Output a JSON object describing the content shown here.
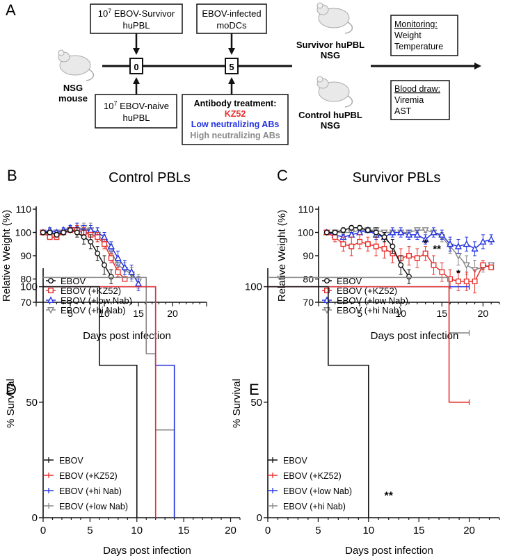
{
  "schematic": {
    "panel_label": "A",
    "box_survivor": [
      "10",
      "7",
      " EBOV-Survivor",
      "huPBL"
    ],
    "box_naive": [
      "10",
      "7",
      " EBOV-naive",
      "huPBL"
    ],
    "box_modc": [
      "EBOV-infected",
      "moDCs"
    ],
    "day0": "0",
    "day5": "5",
    "mouse_label": [
      "NSG",
      "mouse"
    ],
    "antibody": {
      "title": "Antibody treatment:",
      "kz52": "KZ52",
      "low": "Low neutralizing ABs",
      "high": "High neutralizing ABs"
    },
    "group_survivor": [
      "Survivor huPBL",
      "NSG"
    ],
    "group_control": [
      "Control huPBL",
      "NSG"
    ],
    "monitoring": [
      "Monitoring:",
      "Weight",
      "Temperature"
    ],
    "blood": [
      "Blood draw:",
      "Viremia",
      "AST"
    ]
  },
  "colors": {
    "EBOV": "#111111",
    "KZ52": "#e8302b",
    "low": "#2233e0",
    "hi": "#888888"
  },
  "chart_data": [
    {
      "id": "B",
      "type": "line",
      "panel_label": "B",
      "title": "Control PBLs",
      "xlabel": "Days post infection",
      "ylabel": "Relative Weight  (%)",
      "xlim": [
        0,
        25
      ],
      "ylim": [
        70,
        110
      ],
      "xticks": [
        "5",
        "10",
        "15",
        "20"
      ],
      "yticks": [
        "70",
        "80",
        "90",
        "100",
        "110"
      ],
      "legend": [
        "EBOV",
        "EBOV (+KZ52)",
        "EBOV (+low Nab)",
        "EBOV (+hi Nab)"
      ],
      "series": [
        {
          "name": "EBOV",
          "key": "EBOV",
          "marker": "circle",
          "x": [
            1,
            2,
            3,
            4,
            5,
            6,
            7,
            8,
            9,
            10,
            11
          ],
          "y": [
            100,
            100,
            99,
            100,
            101,
            100,
            98,
            96,
            91,
            86,
            81
          ],
          "err": [
            0,
            1,
            1,
            1,
            1,
            2,
            3,
            3,
            3,
            4,
            3
          ]
        },
        {
          "name": "EBOV (+KZ52)",
          "key": "KZ52",
          "marker": "square",
          "x": [
            1,
            2,
            3,
            4,
            5,
            6,
            7,
            8,
            9,
            10,
            11,
            12,
            13
          ],
          "y": [
            100,
            98,
            98,
            100,
            101,
            101,
            100,
            99,
            98,
            95,
            89,
            83,
            80
          ],
          "err": [
            0,
            1,
            1,
            1,
            1,
            2,
            2,
            1,
            2,
            2,
            2,
            2,
            1
          ]
        },
        {
          "name": "EBOV (+low Nab)",
          "key": "low",
          "marker": "triangle",
          "x": [
            1,
            2,
            3,
            4,
            5,
            6,
            7,
            8,
            9,
            10,
            11,
            12,
            13,
            14,
            15
          ],
          "y": [
            100,
            101,
            100,
            101,
            102,
            102,
            101,
            101,
            100,
            98,
            94,
            89,
            85,
            83,
            78
          ],
          "err": [
            0,
            1,
            1,
            1,
            1,
            2,
            2,
            2,
            2,
            2,
            2,
            3,
            3,
            3,
            3
          ]
        },
        {
          "name": "EBOV (+hi Nab)",
          "key": "hi",
          "marker": "tri-down",
          "x": [
            1,
            2,
            3,
            4,
            5,
            6,
            7,
            8,
            9,
            10,
            11,
            12,
            13,
            14,
            15
          ],
          "y": [
            100,
            99,
            100,
            100,
            101,
            101,
            102,
            101,
            99,
            96,
            92,
            86,
            84,
            82,
            79
          ],
          "err": [
            0,
            1,
            1,
            1,
            1,
            2,
            2,
            3,
            3,
            3,
            3,
            3,
            3,
            3,
            3
          ]
        }
      ]
    },
    {
      "id": "C",
      "type": "line",
      "panel_label": "C",
      "title": "Survivor PBLs",
      "xlabel": "Days post infection",
      "ylabel": "Relative Weight  (%)",
      "xlim": [
        0,
        22
      ],
      "ylim": [
        70,
        110
      ],
      "xticks": [
        "5",
        "10",
        "15",
        "20"
      ],
      "yticks": [
        "70",
        "80",
        "90",
        "100",
        "110"
      ],
      "legend": [
        "EBOV",
        "EBOV (+KZ52)",
        "EBOV (+low Nab)",
        "EBOV (+hi Nab)"
      ],
      "annotations": [
        {
          "text": "*",
          "x": 13,
          "y": 94
        },
        {
          "text": "**",
          "x": 14.4,
          "y": 91.5
        },
        {
          "text": "*",
          "x": 17,
          "y": 81
        }
      ],
      "series": [
        {
          "name": "EBOV",
          "key": "EBOV",
          "marker": "circle",
          "x": [
            1,
            2,
            3,
            4,
            5,
            6,
            7,
            8,
            9,
            10,
            11
          ],
          "y": [
            100,
            100,
            101,
            102,
            102,
            101,
            100,
            98,
            94,
            86,
            81
          ],
          "err": [
            0,
            1,
            1,
            1,
            1,
            1,
            2,
            2,
            3,
            4,
            3
          ]
        },
        {
          "name": "EBOV (+KZ52)",
          "key": "KZ52",
          "marker": "square",
          "x": [
            1,
            2,
            3,
            4,
            5,
            6,
            7,
            8,
            9,
            10,
            11,
            12,
            13,
            14,
            15,
            16,
            17,
            18,
            19,
            20,
            21
          ],
          "y": [
            100,
            98,
            95,
            94,
            96,
            95,
            94,
            93,
            91,
            89,
            90,
            89,
            91,
            86,
            83,
            80,
            79,
            79,
            79,
            86,
            85
          ],
          "err": [
            0,
            2,
            3,
            4,
            3,
            3,
            4,
            4,
            4,
            4,
            4,
            4,
            3,
            4,
            4,
            4,
            4,
            4,
            5,
            2,
            1
          ]
        },
        {
          "name": "EBOV (+low Nab)",
          "key": "low",
          "marker": "triangle",
          "x": [
            1,
            2,
            3,
            4,
            5,
            6,
            7,
            8,
            9,
            10,
            11,
            12,
            13,
            14,
            15,
            16,
            17,
            18,
            19,
            20,
            21
          ],
          "y": [
            100,
            99,
            98,
            99,
            100,
            101,
            99,
            98,
            100,
            100,
            99,
            99,
            97,
            100,
            99,
            95,
            94,
            95,
            93,
            96,
            97
          ],
          "err": [
            0,
            1,
            1,
            1,
            1,
            1,
            2,
            2,
            2,
            2,
            2,
            2,
            2,
            2,
            2,
            3,
            3,
            3,
            3,
            3,
            2
          ]
        },
        {
          "name": "EBOV (+hi Nab)",
          "key": "hi",
          "marker": "tri-down",
          "x": [
            1,
            2,
            3,
            4,
            5,
            6,
            7,
            8,
            9,
            10,
            11,
            12,
            13,
            14,
            15,
            16,
            17,
            18,
            19,
            20,
            21
          ],
          "y": [
            100,
            100,
            100,
            100,
            101,
            101,
            101,
            100,
            100,
            100,
            100,
            101,
            101,
            100,
            98,
            94,
            90,
            86,
            84,
            85,
            86
          ],
          "err": [
            0,
            1,
            1,
            1,
            1,
            1,
            1,
            1,
            1,
            1,
            1,
            1,
            1,
            1,
            2,
            3,
            4,
            4,
            4,
            2,
            1
          ]
        }
      ]
    },
    {
      "id": "D",
      "type": "line",
      "subtype": "survival",
      "panel_label": "D",
      "xlabel": "Days post infection",
      "ylabel": "% Survival",
      "xlim": [
        0,
        21
      ],
      "ylim": [
        0,
        105
      ],
      "xticks": [
        "0",
        "5",
        "10",
        "15",
        "20"
      ],
      "yticks": [
        "0",
        "50",
        "100"
      ],
      "legend": [
        "EBOV",
        "EBOV (+KZ52)",
        "EBOV (+hi Nab)",
        "EBOV (+low Nab)"
      ],
      "series": [
        {
          "name": "EBOV",
          "key": "EBOV",
          "steps": [
            [
              0,
              100
            ],
            [
              6,
              66
            ],
            [
              10,
              0
            ]
          ]
        },
        {
          "name": "EBOV (+KZ52)",
          "key": "KZ52",
          "steps": [
            [
              0,
              100
            ],
            [
              12,
              0
            ]
          ]
        },
        {
          "name": "EBOV (+hi Nab)",
          "key": "low",
          "steps": [
            [
              0,
              100
            ],
            [
              12,
              66
            ],
            [
              14,
              0
            ]
          ]
        },
        {
          "name": "EBOV (+low Nab)",
          "key": "hi",
          "steps": [
            [
              0,
              104
            ],
            [
              11,
              71
            ],
            [
              12,
              38
            ],
            [
              14,
              0
            ]
          ]
        }
      ]
    },
    {
      "id": "E",
      "type": "line",
      "subtype": "survival",
      "panel_label": "E",
      "xlabel": "Days post infection",
      "ylabel": "% Survival",
      "xlim": [
        0,
        23
      ],
      "ylim": [
        0,
        105
      ],
      "xticks": [
        "0",
        "5",
        "10",
        "15",
        "20"
      ],
      "yticks": [
        "0",
        "50",
        "100"
      ],
      "legend": [
        "EBOV",
        "EBOV (+KZ52)",
        "EBOV (+low Nab)",
        "EBOV (+hi Nab)"
      ],
      "annotations": [
        {
          "text": "**",
          "x": 12,
          "y": 8
        }
      ],
      "series": [
        {
          "name": "EBOV",
          "key": "EBOV",
          "steps": [
            [
              0,
              100
            ],
            [
              6,
              66
            ],
            [
              10,
              0
            ]
          ]
        },
        {
          "name": "EBOV (+KZ52)",
          "key": "KZ52",
          "steps": [
            [
              0,
              100
            ],
            [
              18,
              50
            ]
          ],
          "end": 20
        },
        {
          "name": "EBOV (+low Nab)",
          "key": "low",
          "steps": [
            [
              0,
              100
            ]
          ],
          "end": 20
        },
        {
          "name": "EBOV (+hi Nab)",
          "key": "hi",
          "steps": [
            [
              0,
              104
            ],
            [
              18,
              80
            ]
          ],
          "end": 20
        }
      ]
    }
  ]
}
